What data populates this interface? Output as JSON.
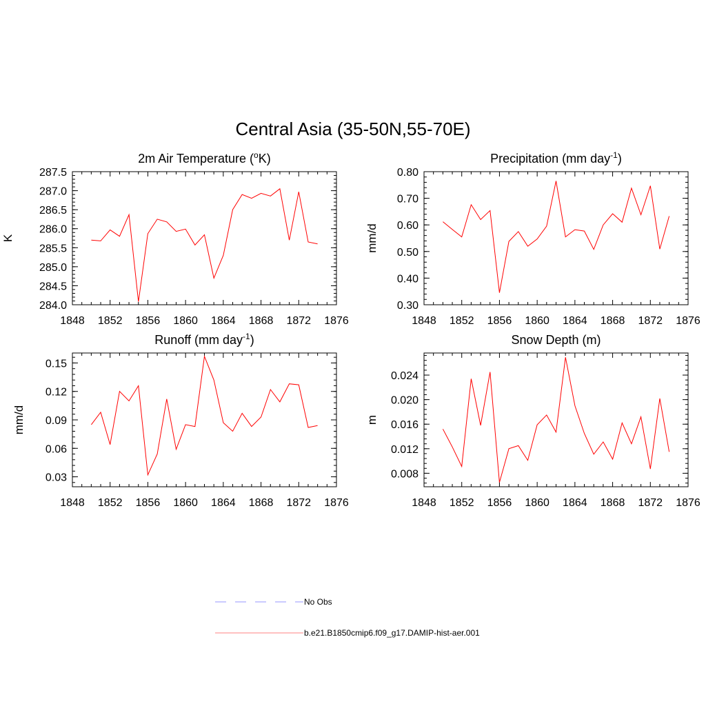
{
  "figure": {
    "title": "Central Asia (35-50N,55-70E)"
  },
  "legend": {
    "entries": [
      {
        "label": "No Obs",
        "color": "#aaaaff",
        "style": "dashed"
      },
      {
        "label": "b.e21.B1850cmip6.f09_g17.DAMIP-hist-aer.001",
        "color": "#ff8080",
        "style": "solid"
      }
    ]
  },
  "chart_data": [
    {
      "type": "line",
      "title_main": "2m Air Temperature (",
      "title_sup": "o",
      "title_after": "K)",
      "title_sup_mid": true,
      "ylabel": "K",
      "xlim": [
        1848,
        1876
      ],
      "ylim": [
        284.0,
        287.5
      ],
      "xticks": [
        1848,
        1852,
        1856,
        1860,
        1864,
        1868,
        1872,
        1876
      ],
      "yticks": [
        "284.0",
        "284.5",
        "285.0",
        "285.5",
        "286.0",
        "286.5",
        "287.0",
        "287.5"
      ],
      "series": [
        {
          "color": "#ff0000",
          "x": [
            1850,
            1851,
            1852,
            1853,
            1854,
            1855,
            1856,
            1857,
            1858,
            1859,
            1860,
            1861,
            1862,
            1863,
            1864,
            1865,
            1866,
            1867,
            1868,
            1869,
            1870,
            1871,
            1872,
            1873,
            1874
          ],
          "y": [
            285.7,
            285.68,
            285.97,
            285.8,
            286.37,
            284.08,
            285.87,
            286.25,
            286.18,
            285.93,
            285.99,
            285.57,
            285.84,
            284.7,
            285.3,
            286.5,
            286.9,
            286.8,
            286.93,
            286.86,
            287.05,
            285.7,
            286.97,
            285.65,
            285.6
          ]
        }
      ]
    },
    {
      "type": "line",
      "title_main": "Precipitation (mm day",
      "title_sup": "-1",
      "title_after": ")",
      "ylabel": "mm/d",
      "xlim": [
        1848,
        1876
      ],
      "ylim": [
        0.3,
        0.8
      ],
      "xticks": [
        1848,
        1852,
        1856,
        1860,
        1864,
        1868,
        1872,
        1876
      ],
      "yticks": [
        "0.30",
        "0.40",
        "0.50",
        "0.60",
        "0.70",
        "0.80"
      ],
      "series": [
        {
          "color": "#ff0000",
          "x": [
            1850,
            1851,
            1852,
            1853,
            1854,
            1855,
            1856,
            1857,
            1858,
            1859,
            1860,
            1861,
            1862,
            1863,
            1864,
            1865,
            1866,
            1867,
            1868,
            1869,
            1870,
            1871,
            1872,
            1873,
            1874
          ],
          "y": [
            0.612,
            0.583,
            0.555,
            0.676,
            0.62,
            0.654,
            0.345,
            0.538,
            0.575,
            0.52,
            0.547,
            0.595,
            0.765,
            0.555,
            0.582,
            0.577,
            0.508,
            0.6,
            0.642,
            0.61,
            0.738,
            0.638,
            0.747,
            0.509,
            0.633
          ]
        }
      ]
    },
    {
      "type": "line",
      "title_main": "Runoff (mm day",
      "title_sup": "-1",
      "title_after": ")",
      "ylabel": "mm/d",
      "xlim": [
        1848,
        1876
      ],
      "ylim": [
        0.0195,
        0.1605
      ],
      "xticks": [
        1848,
        1852,
        1856,
        1860,
        1864,
        1868,
        1872,
        1876
      ],
      "ytick_values": [
        0.03,
        0.06,
        0.09,
        0.12,
        0.15
      ],
      "yticks": [
        "0.03",
        "0.06",
        "0.09",
        "0.12",
        "0.15"
      ],
      "series": [
        {
          "color": "#ff0000",
          "x": [
            1850,
            1851,
            1852,
            1853,
            1854,
            1855,
            1856,
            1857,
            1858,
            1859,
            1860,
            1861,
            1862,
            1863,
            1864,
            1865,
            1866,
            1867,
            1868,
            1869,
            1870,
            1871,
            1872,
            1873,
            1874
          ],
          "y": [
            0.085,
            0.098,
            0.064,
            0.12,
            0.11,
            0.126,
            0.032,
            0.054,
            0.112,
            0.059,
            0.085,
            0.083,
            0.157,
            0.132,
            0.087,
            0.078,
            0.097,
            0.083,
            0.093,
            0.122,
            0.109,
            0.128,
            0.127,
            0.082,
            0.084
          ]
        }
      ]
    },
    {
      "type": "line",
      "title_main": "Snow Depth (m)",
      "title_sup": "",
      "title_after": "",
      "ylabel": "m",
      "xlim": [
        1848,
        1876
      ],
      "ylim": [
        0.0058,
        0.0276
      ],
      "xticks": [
        1848,
        1852,
        1856,
        1860,
        1864,
        1868,
        1872,
        1876
      ],
      "ytick_values": [
        0.008,
        0.012,
        0.016,
        0.02,
        0.024
      ],
      "yticks": [
        "0.008",
        "0.012",
        "0.016",
        "0.020",
        "0.024"
      ],
      "series": [
        {
          "color": "#ff0000",
          "x": [
            1850,
            1851,
            1852,
            1853,
            1854,
            1855,
            1856,
            1857,
            1858,
            1859,
            1860,
            1861,
            1862,
            1863,
            1864,
            1865,
            1866,
            1867,
            1868,
            1869,
            1870,
            1871,
            1872,
            1873,
            1874
          ],
          "y": [
            0.0152,
            0.0123,
            0.0091,
            0.0234,
            0.0158,
            0.0245,
            0.0065,
            0.012,
            0.0125,
            0.0101,
            0.0159,
            0.0175,
            0.0147,
            0.0269,
            0.019,
            0.0145,
            0.0111,
            0.0131,
            0.0103,
            0.0162,
            0.0128,
            0.0172,
            0.0087,
            0.0202,
            0.0115
          ]
        }
      ]
    }
  ]
}
